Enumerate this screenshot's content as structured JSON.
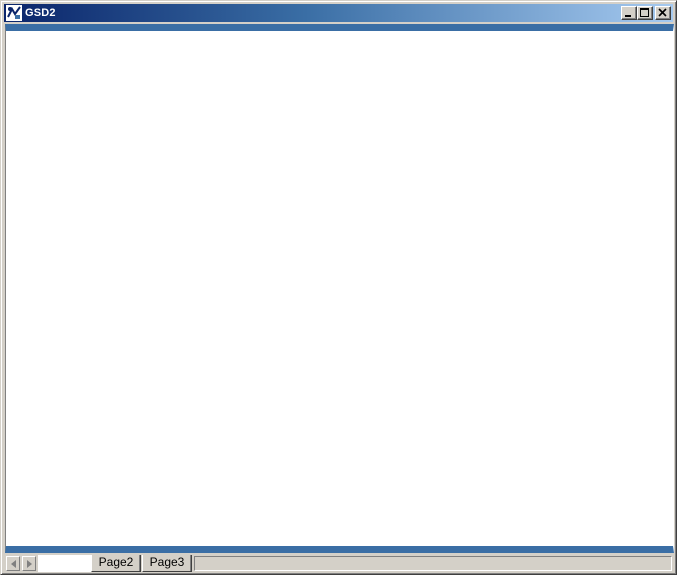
{
  "window": {
    "title": "GSD2",
    "app_icon": "gsd-app-icon",
    "title_bar_colors": {
      "start": "#0a246a",
      "end": "#a6caf0"
    },
    "caption_buttons": [
      "minimize-icon",
      "maximize-icon",
      "close-icon"
    ]
  },
  "workspace": {
    "accent_color": "#3a6ea5",
    "background": "#ffffff"
  },
  "sheet_tabs": {
    "nav_icons": [
      "scroll-left-icon",
      "scroll-right-icon"
    ],
    "tabs": [
      {
        "label": "",
        "active": true
      },
      {
        "label": "Page2",
        "active": false
      },
      {
        "label": "Page3",
        "active": false
      }
    ]
  }
}
